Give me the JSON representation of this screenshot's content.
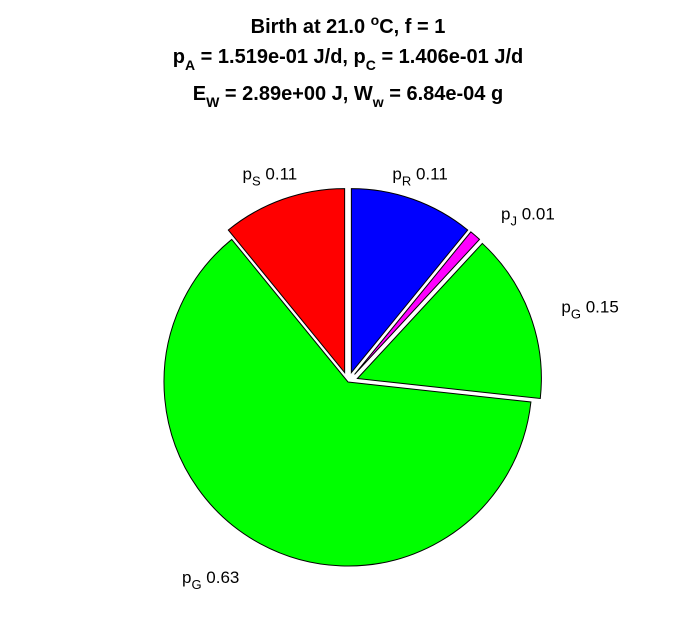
{
  "chart_data": {
    "type": "pie",
    "title_lines": [
      [
        {
          "t": "Birth at 21.0 ",
          "s": "n"
        },
        {
          "t": "o",
          "s": "sup"
        },
        {
          "t": "C, f = 1",
          "s": "n"
        }
      ],
      [
        {
          "t": "p",
          "s": "n"
        },
        {
          "t": "A",
          "s": "sub"
        },
        {
          "t": " = 1.519e-01 J/d, p",
          "s": "n"
        },
        {
          "t": "C",
          "s": "sub"
        },
        {
          "t": " = 1.406e-01 J/d",
          "s": "n"
        }
      ],
      [
        {
          "t": "E",
          "s": "n"
        },
        {
          "t": "W",
          "s": "sub"
        },
        {
          "t": " = 2.89e+00 J, W",
          "s": "n"
        },
        {
          "t": "w",
          "s": "sub"
        },
        {
          "t": " = 6.84e-04 g",
          "s": "n"
        }
      ]
    ],
    "slices": [
      {
        "label": "p",
        "sub": "R",
        "value": 0.11,
        "value_text": "0.11",
        "color": "#0000ff",
        "exploded": true
      },
      {
        "label": "p",
        "sub": "J",
        "value": 0.01,
        "value_text": "0.01",
        "color": "#ff00ff",
        "exploded": true
      },
      {
        "label": "p",
        "sub": "G",
        "value": 0.15,
        "value_text": "0.15",
        "color": "#00ff00",
        "exploded": true
      },
      {
        "label": "p",
        "sub": "G",
        "value": 0.63,
        "value_text": "0.63",
        "color": "#00ff00",
        "exploded": false
      },
      {
        "label": "p",
        "sub": "S",
        "value": 0.11,
        "value_text": "0.11",
        "color": "#ff0000",
        "exploded": true
      }
    ]
  }
}
